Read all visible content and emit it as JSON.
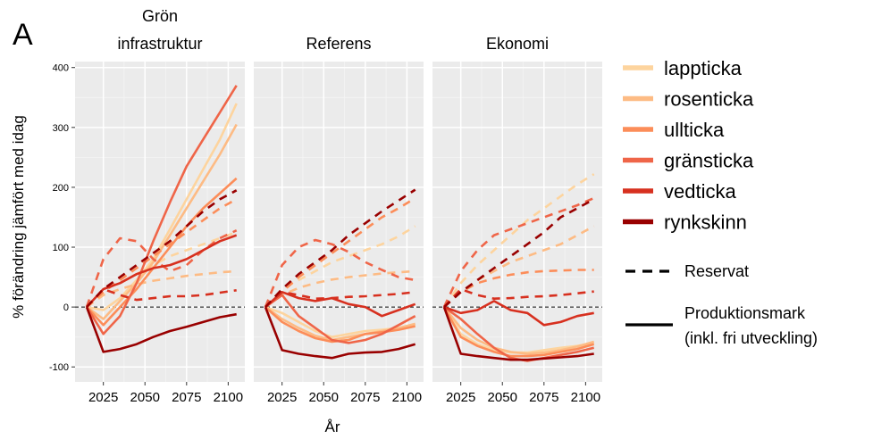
{
  "figure": {
    "panel_letter": "A",
    "xlabel": "År",
    "ylabel": "% förändring jämfört med idag"
  },
  "legend": {
    "species": [
      {
        "name": "lappticka",
        "color": "#fdd49e"
      },
      {
        "name": "rosenticka",
        "color": "#fdbb84"
      },
      {
        "name": "ullticka",
        "color": "#fc8d59"
      },
      {
        "name": "gränsticka",
        "color": "#ef6548"
      },
      {
        "name": "vedticka",
        "color": "#d7301f"
      },
      {
        "name": "rynkskinn",
        "color": "#990000"
      }
    ],
    "linetypes": {
      "dashed": "Reservat",
      "solid_line1": "Produktionsmark",
      "solid_line2": "(inkl. fri utveckling)"
    }
  },
  "chart_data": [
    {
      "type": "line",
      "title_line1": "Grön",
      "title_line2": "infrastruktur",
      "x": [
        2015,
        2025,
        2035,
        2045,
        2055,
        2065,
        2075,
        2085,
        2095,
        2105
      ],
      "xticks": [
        2025,
        2050,
        2075,
        2100
      ],
      "yticks": [
        -100,
        0,
        100,
        200,
        300,
        400
      ],
      "ylim": [
        -125,
        410
      ],
      "xlim": [
        2008,
        2110
      ],
      "grid": true,
      "reference_line": 0,
      "series": [
        {
          "name": "lappticka",
          "linetype": "solid",
          "values": [
            0,
            -5,
            15,
            45,
            80,
            130,
            180,
            230,
            280,
            340
          ]
        },
        {
          "name": "lappticka",
          "linetype": "dashed",
          "values": [
            0,
            30,
            40,
            55,
            70,
            85,
            95,
            105,
            115,
            125
          ]
        },
        {
          "name": "rosenticka",
          "linetype": "solid",
          "values": [
            0,
            -20,
            10,
            40,
            75,
            120,
            165,
            210,
            255,
            305
          ]
        },
        {
          "name": "rosenticka",
          "linetype": "dashed",
          "values": [
            0,
            20,
            30,
            38,
            44,
            48,
            52,
            55,
            58,
            60
          ]
        },
        {
          "name": "ullticka",
          "linetype": "solid",
          "values": [
            0,
            -30,
            0,
            30,
            65,
            100,
            135,
            165,
            190,
            215
          ]
        },
        {
          "name": "ullticka",
          "linetype": "dashed",
          "values": [
            0,
            25,
            45,
            65,
            85,
            105,
            125,
            145,
            165,
            180
          ]
        },
        {
          "name": "gränsticka",
          "linetype": "solid",
          "values": [
            0,
            -45,
            -15,
            40,
            110,
            175,
            235,
            280,
            325,
            370
          ]
        },
        {
          "name": "gränsticka",
          "linetype": "dashed",
          "values": [
            0,
            80,
            115,
            110,
            80,
            60,
            70,
            95,
            115,
            128
          ]
        },
        {
          "name": "vedticka",
          "linetype": "solid",
          "values": [
            0,
            30,
            40,
            55,
            65,
            70,
            80,
            95,
            110,
            120
          ]
        },
        {
          "name": "vedticka",
          "linetype": "dashed",
          "values": [
            0,
            30,
            20,
            12,
            15,
            18,
            18,
            20,
            24,
            28
          ]
        },
        {
          "name": "rynkskinn",
          "linetype": "solid",
          "values": [
            0,
            -75,
            -70,
            -62,
            -50,
            -40,
            -33,
            -25,
            -17,
            -12
          ]
        },
        {
          "name": "rynkskinn",
          "linetype": "dashed",
          "values": [
            0,
            30,
            50,
            70,
            90,
            110,
            135,
            160,
            180,
            195
          ]
        }
      ]
    },
    {
      "type": "line",
      "title_line1": "",
      "title_line2": "Referens",
      "x": [
        2015,
        2025,
        2035,
        2045,
        2055,
        2065,
        2075,
        2085,
        2095,
        2105
      ],
      "xticks": [
        2025,
        2050,
        2075,
        2100
      ],
      "yticks": [
        -100,
        0,
        100,
        200,
        300,
        400
      ],
      "ylim": [
        -125,
        410
      ],
      "xlim": [
        2008,
        2110
      ],
      "grid": true,
      "reference_line": 0,
      "series": [
        {
          "name": "lappticka",
          "linetype": "solid",
          "values": [
            0,
            -10,
            -25,
            -40,
            -50,
            -45,
            -40,
            -38,
            -35,
            -30
          ]
        },
        {
          "name": "lappticka",
          "linetype": "dashed",
          "values": [
            0,
            30,
            45,
            60,
            75,
            85,
            95,
            105,
            118,
            135
          ]
        },
        {
          "name": "rosenticka",
          "linetype": "solid",
          "values": [
            0,
            -20,
            -35,
            -48,
            -55,
            -50,
            -45,
            -40,
            -35,
            -28
          ]
        },
        {
          "name": "rosenticka",
          "linetype": "dashed",
          "values": [
            0,
            20,
            32,
            40,
            46,
            50,
            53,
            56,
            58,
            60
          ]
        },
        {
          "name": "ullticka",
          "linetype": "solid",
          "values": [
            0,
            -25,
            -40,
            -52,
            -58,
            -55,
            -45,
            -42,
            -38,
            -32
          ]
        },
        {
          "name": "ullticka",
          "linetype": "dashed",
          "values": [
            0,
            25,
            50,
            70,
            90,
            110,
            130,
            150,
            165,
            182
          ]
        },
        {
          "name": "gränsticka",
          "linetype": "solid",
          "values": [
            0,
            20,
            -15,
            -35,
            -55,
            -60,
            -55,
            -45,
            -30,
            -15
          ]
        },
        {
          "name": "gränsticka",
          "linetype": "dashed",
          "values": [
            0,
            70,
            100,
            112,
            105,
            92,
            75,
            62,
            50,
            45
          ]
        },
        {
          "name": "vedticka",
          "linetype": "solid",
          "values": [
            0,
            25,
            15,
            10,
            15,
            5,
            0,
            -15,
            -5,
            5
          ]
        },
        {
          "name": "vedticka",
          "linetype": "dashed",
          "values": [
            0,
            25,
            20,
            14,
            15,
            17,
            18,
            20,
            22,
            25
          ]
        },
        {
          "name": "rynkskinn",
          "linetype": "solid",
          "values": [
            0,
            -72,
            -78,
            -82,
            -85,
            -78,
            -76,
            -75,
            -70,
            -62
          ]
        },
        {
          "name": "rynkskinn",
          "linetype": "dashed",
          "values": [
            0,
            30,
            55,
            75,
            95,
            120,
            140,
            160,
            178,
            196
          ]
        }
      ]
    },
    {
      "type": "line",
      "title_line1": "",
      "title_line2": "Ekonomi",
      "x": [
        2015,
        2025,
        2035,
        2045,
        2055,
        2065,
        2075,
        2085,
        2095,
        2105
      ],
      "xticks": [
        2025,
        2050,
        2075,
        2100
      ],
      "yticks": [
        -100,
        0,
        100,
        200,
        300,
        400
      ],
      "ylim": [
        -125,
        410
      ],
      "xlim": [
        2008,
        2110
      ],
      "grid": true,
      "reference_line": 0,
      "series": [
        {
          "name": "lappticka",
          "linetype": "solid",
          "values": [
            0,
            -45,
            -62,
            -72,
            -76,
            -76,
            -72,
            -68,
            -65,
            -60
          ]
        },
        {
          "name": "lappticka",
          "linetype": "dashed",
          "values": [
            0,
            40,
            70,
            95,
            120,
            145,
            165,
            185,
            205,
            222
          ]
        },
        {
          "name": "rosenticka",
          "linetype": "solid",
          "values": [
            0,
            -35,
            -55,
            -68,
            -75,
            -78,
            -76,
            -72,
            -66,
            -58
          ]
        },
        {
          "name": "rosenticka",
          "linetype": "dashed",
          "values": [
            0,
            25,
            45,
            60,
            75,
            85,
            95,
            105,
            120,
            135
          ]
        },
        {
          "name": "ullticka",
          "linetype": "solid",
          "values": [
            0,
            -50,
            -65,
            -75,
            -82,
            -82,
            -80,
            -75,
            -70,
            -62
          ]
        },
        {
          "name": "ullticka",
          "linetype": "dashed",
          "values": [
            0,
            25,
            40,
            48,
            54,
            58,
            60,
            61,
            62,
            62
          ]
        },
        {
          "name": "gränsticka",
          "linetype": "solid",
          "values": [
            0,
            -20,
            -45,
            -68,
            -85,
            -90,
            -85,
            -80,
            -75,
            -68
          ]
        },
        {
          "name": "gränsticka",
          "linetype": "dashed",
          "values": [
            0,
            60,
            95,
            120,
            130,
            140,
            150,
            160,
            170,
            182
          ]
        },
        {
          "name": "vedticka",
          "linetype": "solid",
          "values": [
            0,
            -10,
            -5,
            10,
            -5,
            -10,
            -30,
            -25,
            -15,
            -10
          ]
        },
        {
          "name": "vedticka",
          "linetype": "dashed",
          "values": [
            0,
            30,
            20,
            14,
            15,
            17,
            18,
            20,
            23,
            26
          ]
        },
        {
          "name": "rynkskinn",
          "linetype": "solid",
          "values": [
            0,
            -78,
            -82,
            -85,
            -88,
            -88,
            -86,
            -84,
            -82,
            -78
          ]
        },
        {
          "name": "rynkskinn",
          "linetype": "dashed",
          "values": [
            0,
            25,
            45,
            65,
            85,
            105,
            125,
            150,
            165,
            180
          ]
        }
      ]
    }
  ]
}
